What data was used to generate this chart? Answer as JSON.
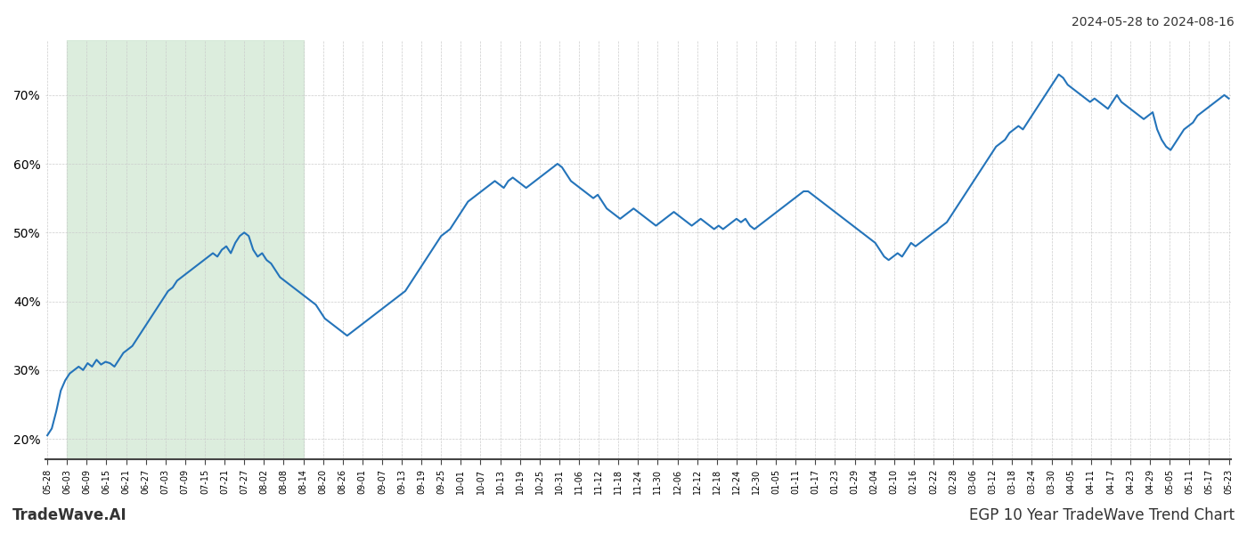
{
  "title_top_right": "2024-05-28 to 2024-08-16",
  "title_bottom_left": "TradeWave.AI",
  "title_bottom_right": "EGP 10 Year TradeWave Trend Chart",
  "line_color": "#2474ba",
  "line_width": 1.5,
  "shade_color": "#d6ead8",
  "shade_alpha": 0.85,
  "background_color": "#ffffff",
  "grid_color": "#cccccc",
  "ylim": [
    17,
    78
  ],
  "yticks": [
    20,
    30,
    40,
    50,
    60,
    70
  ],
  "x_labels": [
    "05-28",
    "06-03",
    "06-09",
    "06-15",
    "06-21",
    "06-27",
    "07-03",
    "07-09",
    "07-15",
    "07-21",
    "07-27",
    "08-02",
    "08-08",
    "08-14",
    "08-20",
    "08-26",
    "09-01",
    "09-07",
    "09-13",
    "09-19",
    "09-25",
    "10-01",
    "10-07",
    "10-13",
    "10-19",
    "10-25",
    "10-31",
    "11-06",
    "11-12",
    "11-18",
    "11-24",
    "11-30",
    "12-06",
    "12-12",
    "12-18",
    "12-24",
    "12-30",
    "01-05",
    "01-11",
    "01-17",
    "01-23",
    "01-29",
    "02-04",
    "02-10",
    "02-16",
    "02-22",
    "02-28",
    "03-06",
    "03-12",
    "03-18",
    "03-24",
    "03-30",
    "04-05",
    "04-11",
    "04-17",
    "04-23",
    "04-29",
    "05-05",
    "05-11",
    "05-17",
    "05-23"
  ],
  "shade_start_label": "06-03",
  "shade_end_label": "08-14",
  "values": [
    20.5,
    21.5,
    24.0,
    27.0,
    28.5,
    29.5,
    30.0,
    30.5,
    30.0,
    31.0,
    30.5,
    31.5,
    30.8,
    31.2,
    31.0,
    30.5,
    31.5,
    32.5,
    33.0,
    33.5,
    34.5,
    35.5,
    36.5,
    37.5,
    38.5,
    39.5,
    40.5,
    41.5,
    42.0,
    43.0,
    43.5,
    44.0,
    44.5,
    45.0,
    45.5,
    46.0,
    46.5,
    47.0,
    46.5,
    47.5,
    48.0,
    47.0,
    48.5,
    49.5,
    50.0,
    49.5,
    47.5,
    46.5,
    47.0,
    46.0,
    45.5,
    44.5,
    43.5,
    43.0,
    42.5,
    42.0,
    41.5,
    41.0,
    40.5,
    40.0,
    39.5,
    38.5,
    37.5,
    37.0,
    36.5,
    36.0,
    35.5,
    35.0,
    35.5,
    36.0,
    36.5,
    37.0,
    37.5,
    38.0,
    38.5,
    39.0,
    39.5,
    40.0,
    40.5,
    41.0,
    41.5,
    42.5,
    43.5,
    44.5,
    45.5,
    46.5,
    47.5,
    48.5,
    49.5,
    50.0,
    50.5,
    51.5,
    52.5,
    53.5,
    54.5,
    55.0,
    55.5,
    56.0,
    56.5,
    57.0,
    57.5,
    57.0,
    56.5,
    57.5,
    58.0,
    57.5,
    57.0,
    56.5,
    57.0,
    57.5,
    58.0,
    58.5,
    59.0,
    59.5,
    60.0,
    59.5,
    58.5,
    57.5,
    57.0,
    56.5,
    56.0,
    55.5,
    55.0,
    55.5,
    54.5,
    53.5,
    53.0,
    52.5,
    52.0,
    52.5,
    53.0,
    53.5,
    53.0,
    52.5,
    52.0,
    51.5,
    51.0,
    51.5,
    52.0,
    52.5,
    53.0,
    52.5,
    52.0,
    51.5,
    51.0,
    51.5,
    52.0,
    51.5,
    51.0,
    50.5,
    51.0,
    50.5,
    51.0,
    51.5,
    52.0,
    51.5,
    52.0,
    51.0,
    50.5,
    51.0,
    51.5,
    52.0,
    52.5,
    53.0,
    53.5,
    54.0,
    54.5,
    55.0,
    55.5,
    56.0,
    56.0,
    55.5,
    55.0,
    54.5,
    54.0,
    53.5,
    53.0,
    52.5,
    52.0,
    51.5,
    51.0,
    50.5,
    50.0,
    49.5,
    49.0,
    48.5,
    47.5,
    46.5,
    46.0,
    46.5,
    47.0,
    46.5,
    47.5,
    48.5,
    48.0,
    48.5,
    49.0,
    49.5,
    50.0,
    50.5,
    51.0,
    51.5,
    52.5,
    53.5,
    54.5,
    55.5,
    56.5,
    57.5,
    58.5,
    59.5,
    60.5,
    61.5,
    62.5,
    63.0,
    63.5,
    64.5,
    65.0,
    65.5,
    65.0,
    66.0,
    67.0,
    68.0,
    69.0,
    70.0,
    71.0,
    72.0,
    73.0,
    72.5,
    71.5,
    71.0,
    70.5,
    70.0,
    69.5,
    69.0,
    69.5,
    69.0,
    68.5,
    68.0,
    69.0,
    70.0,
    69.0,
    68.5,
    68.0,
    67.5,
    67.0,
    66.5,
    67.0,
    67.5,
    65.0,
    63.5,
    62.5,
    62.0,
    63.0,
    64.0,
    65.0,
    65.5,
    66.0,
    67.0,
    67.5,
    68.0,
    68.5,
    69.0,
    69.5,
    70.0,
    69.5
  ]
}
